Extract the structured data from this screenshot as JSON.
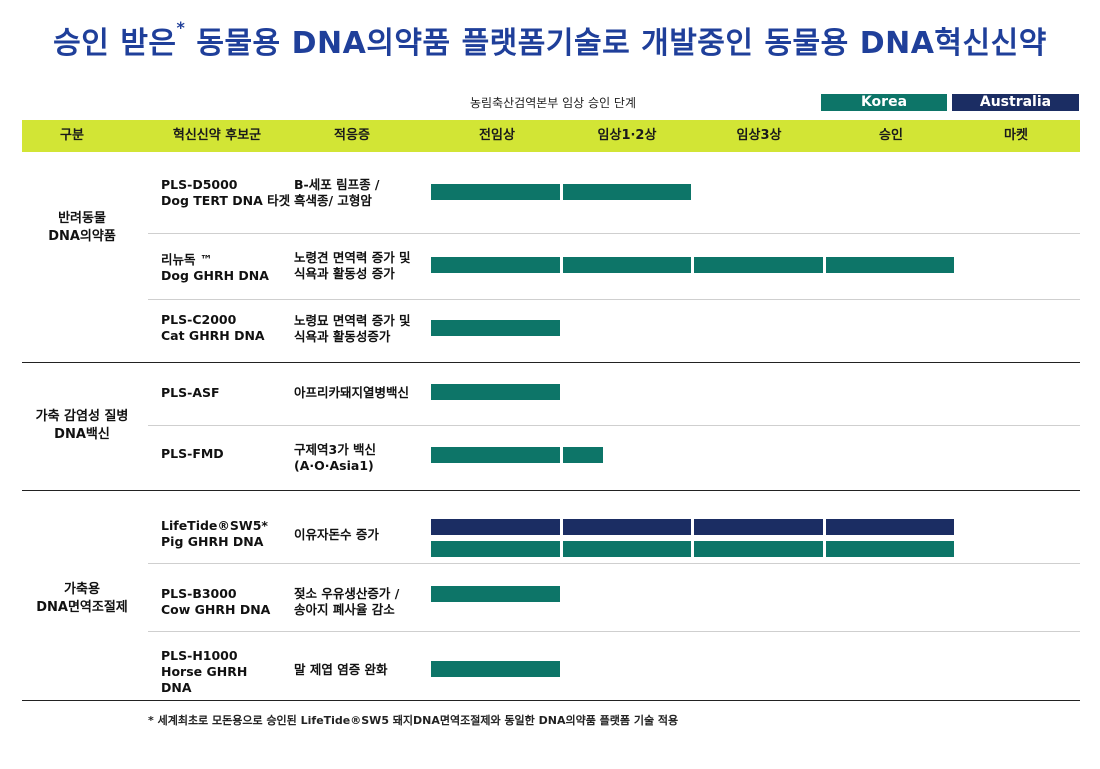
{
  "title": "승인 받은* 동물용 DNA의약품 플랫폼기술로 개발중인 동물용 DNA혁신신약",
  "title_main": "승인 받은",
  "title_star": "*",
  "title_rest": " 동물용 DNA의약품 플랫폼기술로 개발중인 동물용 DNA혁신신약",
  "phase_label": "농림축산검역본부 임상 승인 단계",
  "legend": [
    {
      "label": "Korea",
      "color": "#0d7568"
    },
    {
      "label": "Australia",
      "color": "#1b2d63"
    }
  ],
  "header": {
    "category": "구분",
    "candidate": "혁신신약 후보군",
    "indication": "적응증",
    "stages": [
      "전임상",
      "임상1·2상",
      "임상3상",
      "승인",
      "마켓"
    ]
  },
  "chart_data": {
    "type": "gantt",
    "stages": [
      "전임상",
      "임상1·2상",
      "임상3상",
      "승인",
      "마켓"
    ],
    "series": [
      {
        "name": "Korea",
        "color": "#0d7568"
      },
      {
        "name": "Australia",
        "color": "#1b2d63"
      }
    ],
    "groups": [
      {
        "label": "반려동물\nDNA의약품",
        "rows": [
          {
            "candidate": "PLS-D5000\nDog TERT DNA 타겟",
            "indication": "B-세포 림프종 /\n흑색종/ 고형암",
            "korea_stages": 2.0,
            "australia_stages": 0
          },
          {
            "candidate": "리뉴독 ™\nDog GHRH DNA",
            "indication": "노령견 면역력 증가 및\n식욕과 활동성 증가",
            "korea_stages": 4.0,
            "australia_stages": 0
          },
          {
            "candidate": "PLS-C2000\nCat GHRH DNA",
            "indication": "노령묘 면역력 증가 및\n식욕과 활동성증가",
            "korea_stages": 1.0,
            "australia_stages": 0
          }
        ]
      },
      {
        "label": "가축 감염성 질병\nDNA백신",
        "rows": [
          {
            "candidate": "PLS-ASF",
            "indication": "아프리카돼지열병백신",
            "korea_stages": 1.0,
            "australia_stages": 0
          },
          {
            "candidate": "PLS-FMD",
            "indication": "구제역3가 백신\n(A·O·Asia1)",
            "korea_stages": 1.33,
            "australia_stages": 0
          }
        ]
      },
      {
        "label": "가축용\nDNA면역조절제",
        "rows": [
          {
            "candidate": "LifeTide®SW5*\nPig GHRH DNA",
            "indication": "이유자돈수 증가",
            "korea_stages": 4.0,
            "australia_stages": 4.0
          },
          {
            "candidate": "PLS-B3000\nCow GHRH DNA",
            "indication": "젖소 우유생산증가 /\n송아지 폐사율 감소",
            "korea_stages": 1.0,
            "australia_stages": 0
          },
          {
            "candidate": "PLS-H1000\nHorse GHRH\nDNA",
            "indication": "말 제엽 염증 완화",
            "korea_stages": 1.0,
            "australia_stages": 0
          }
        ]
      }
    ]
  },
  "footnote": "*  세계최초로 모돈용으로 승인된 LifeTide®SW5  돼지DNA면역조절제와 동일한 DNA의약품 플랫폼 기술 적용"
}
